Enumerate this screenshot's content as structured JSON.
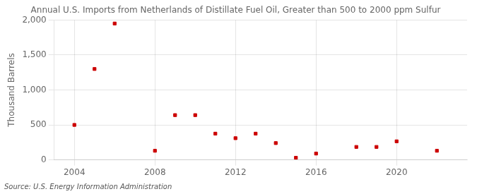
{
  "chart_data": {
    "type": "scatter",
    "title": "Annual U.S. Imports from Netherlands of Distillate Fuel Oil, Greater than 500 to 2000 ppm Sulfur",
    "ylabel": "Thousand Barrels",
    "annotations": [
      "Source: U.S. Energy Information Administration"
    ],
    "x": [
      2004,
      2005,
      2006,
      2008,
      2009,
      2010,
      2011,
      2012,
      2013,
      2014,
      2015,
      2016,
      2018,
      2019,
      2020,
      2022
    ],
    "values": [
      500,
      1300,
      1950,
      130,
      640,
      640,
      375,
      310,
      375,
      240,
      30,
      90,
      185,
      185,
      265,
      130
    ],
    "color": "#cc0000",
    "marker": "square",
    "xlim": [
      2003.0,
      2023.5
    ],
    "xticks": [
      2004,
      2008,
      2012,
      2016,
      2020
    ],
    "ylim": [
      0,
      2000
    ],
    "yticks": [
      0,
      500,
      {
        "value": 1000,
        "label": "1,000"
      },
      {
        "value": 1500,
        "label": "1,500"
      },
      {
        "value": 2000,
        "label": "2,000"
      }
    ],
    "grid": true
  }
}
